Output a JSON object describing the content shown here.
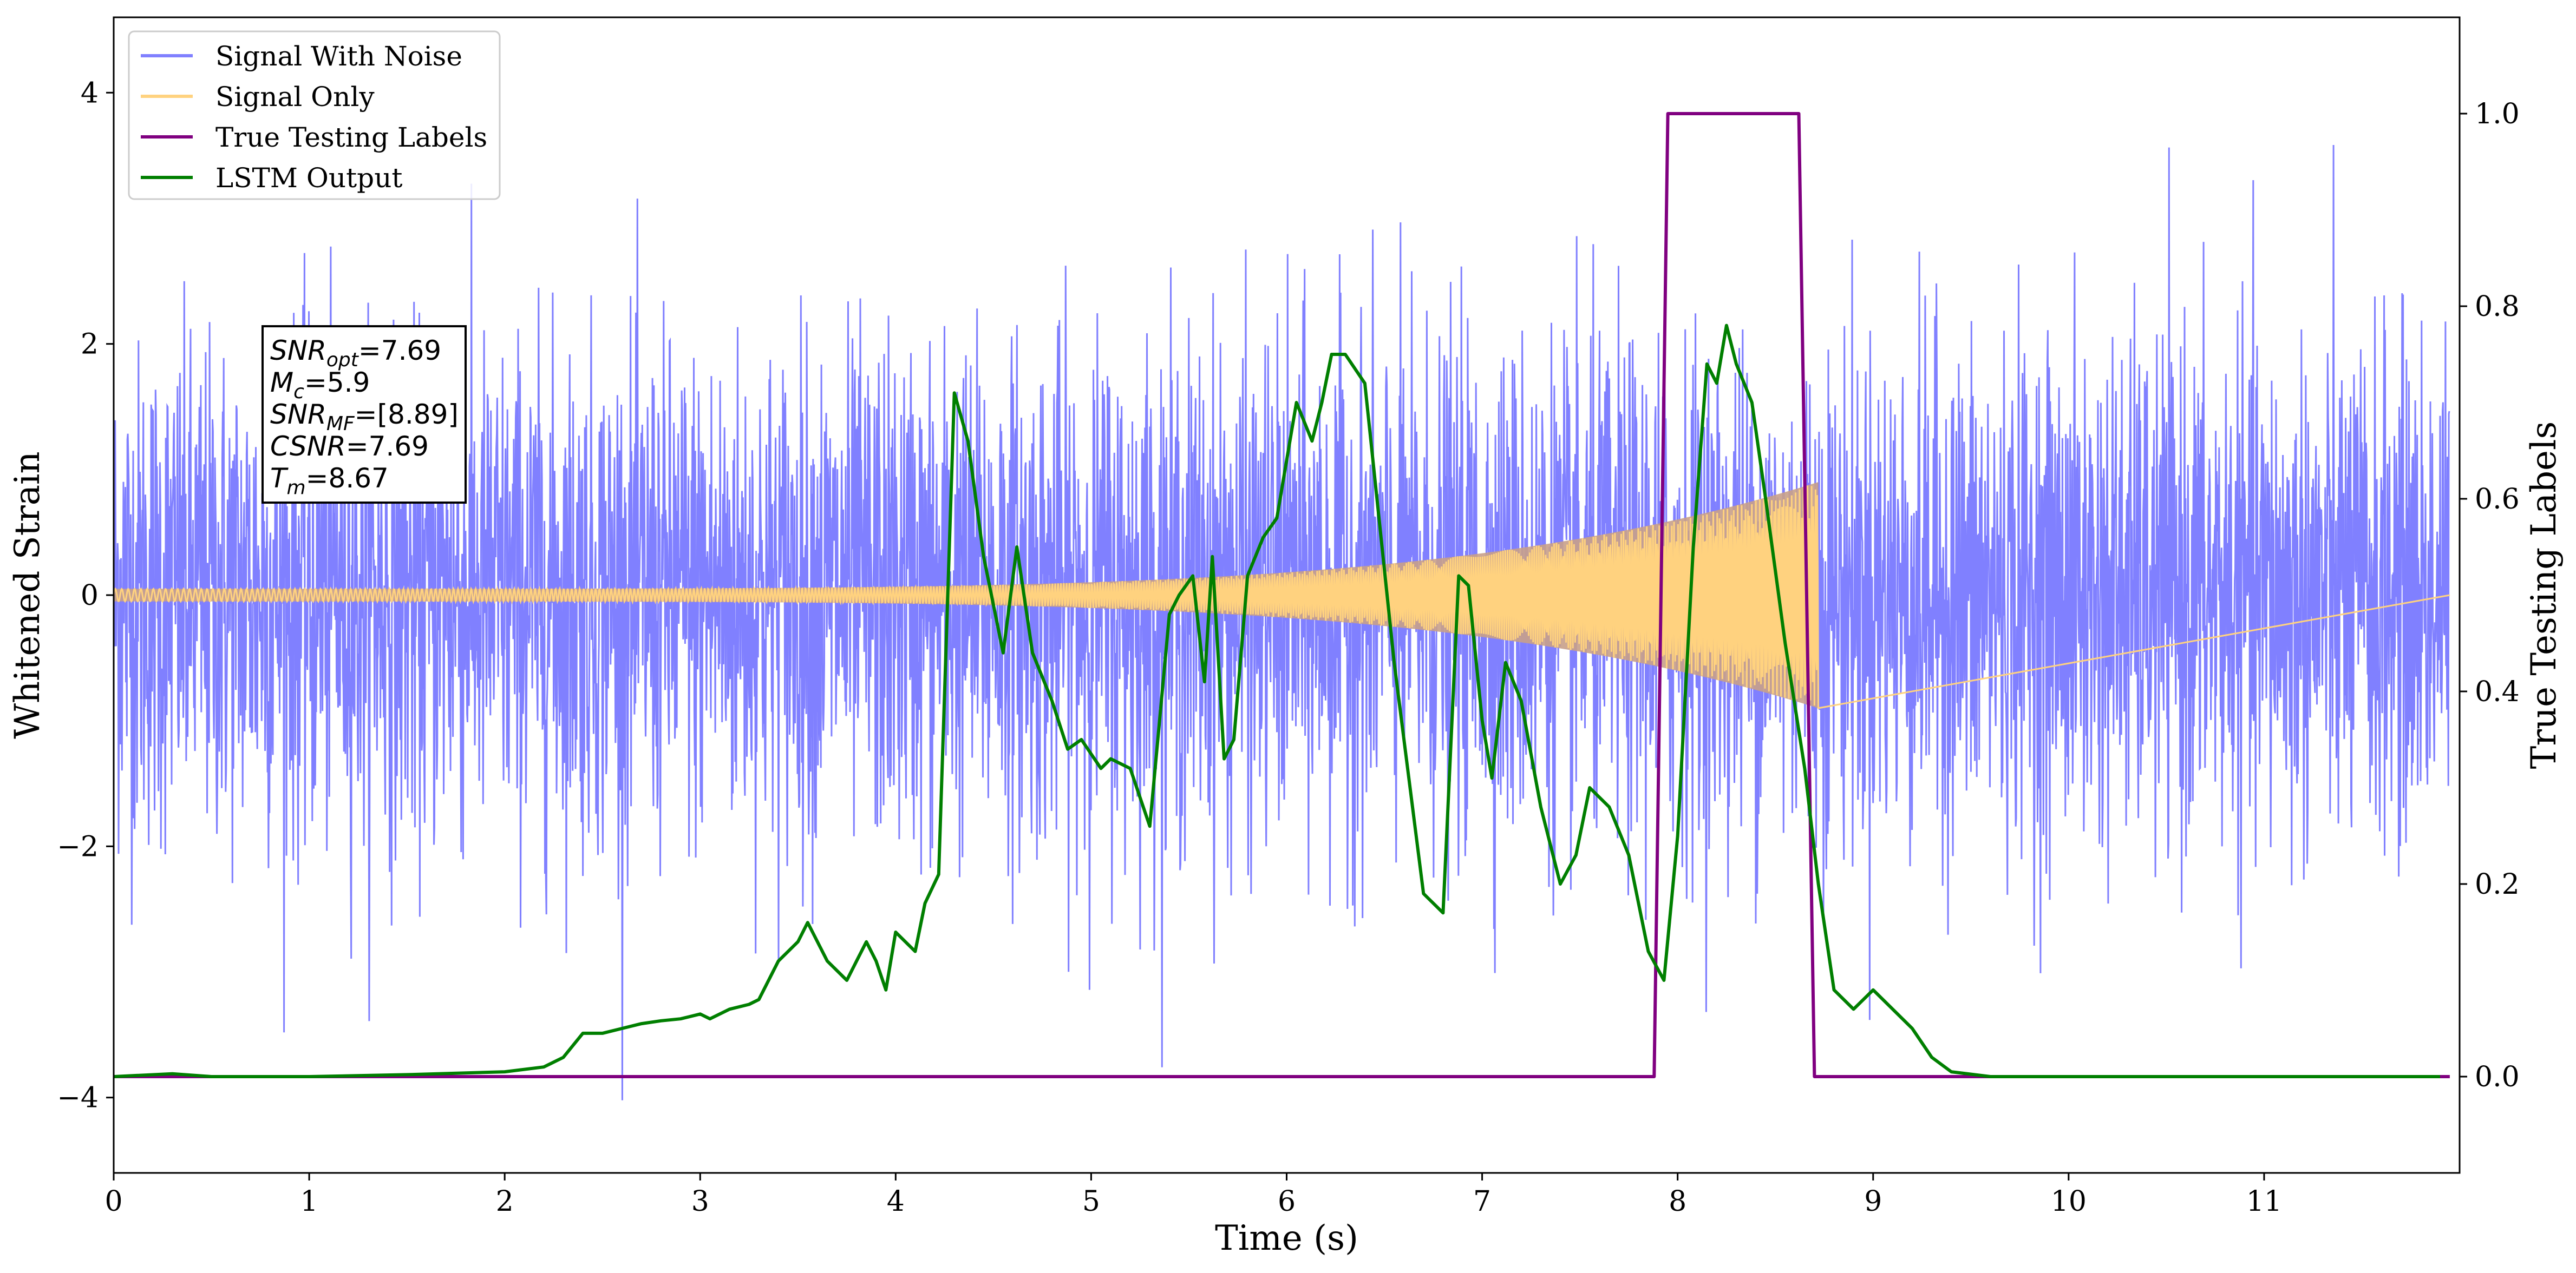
{
  "chart_data": {
    "type": "line",
    "xlabel": "Time (s)",
    "ylabel": "Whitened Strain",
    "y2label": "True Testing Labels",
    "xlim": [
      0,
      12
    ],
    "ylim": [
      -4.6,
      4.6
    ],
    "y2lim": [
      -0.1,
      1.1
    ],
    "xticks": [
      0,
      1,
      2,
      3,
      4,
      5,
      6,
      7,
      8,
      9,
      10,
      11
    ],
    "xticklabels": [
      "0",
      "1",
      "2",
      "3",
      "4",
      "5",
      "6",
      "7",
      "8",
      "9",
      "10",
      "11"
    ],
    "yticks": [
      -4,
      -2,
      0,
      2,
      4
    ],
    "yticklabels": [
      "−4",
      "−2",
      "0",
      "2",
      "4"
    ],
    "y2ticks": [
      0.0,
      0.2,
      0.4,
      0.6,
      0.8,
      1.0
    ],
    "y2ticklabels": [
      "0.0",
      "0.2",
      "0.4",
      "0.6",
      "0.8",
      "1.0"
    ],
    "grid": false,
    "legend_position": "top-left",
    "legend": [
      "Signal With Noise",
      "Signal Only",
      "True Testing Labels",
      "LSTM Output"
    ],
    "series": [
      {
        "name": "Signal With Noise",
        "axis": "left",
        "color": "#8080ff",
        "description_values": {
          "typical_range": [
            -2.0,
            2.0
          ],
          "peaks": [
            4.1,
            -4.2
          ]
        }
      },
      {
        "name": "Signal Only",
        "axis": "left",
        "color": "#ffd27f",
        "chirp": {
          "start": 0.0,
          "end": 8.72,
          "start_amplitude": 0.05,
          "end_amplitude": 0.9
        }
      },
      {
        "name": "True Testing Labels",
        "axis": "right",
        "color": "#800080",
        "x": [
          0.0,
          7.88,
          7.95,
          8.62,
          8.7,
          11.95
        ],
        "y": [
          0.0,
          0.0,
          1.0,
          1.0,
          0.0,
          0.0
        ]
      },
      {
        "name": "LSTM Output",
        "axis": "right",
        "color": "#007f00",
        "x": [
          0.0,
          0.3,
          0.5,
          1.0,
          1.5,
          2.0,
          2.2,
          2.3,
          2.4,
          2.5,
          2.6,
          2.7,
          2.8,
          2.9,
          3.0,
          3.05,
          3.15,
          3.25,
          3.3,
          3.4,
          3.5,
          3.55,
          3.65,
          3.75,
          3.8,
          3.85,
          3.9,
          3.95,
          4.0,
          4.1,
          4.15,
          4.22,
          4.3,
          4.37,
          4.45,
          4.55,
          4.62,
          4.7,
          4.8,
          4.88,
          4.95,
          5.05,
          5.1,
          5.2,
          5.3,
          5.4,
          5.45,
          5.52,
          5.58,
          5.62,
          5.68,
          5.73,
          5.8,
          5.88,
          5.95,
          6.05,
          6.13,
          6.18,
          6.23,
          6.3,
          6.4,
          6.55,
          6.7,
          6.8,
          6.88,
          6.93,
          7.0,
          7.05,
          7.12,
          7.2,
          7.3,
          7.4,
          7.48,
          7.55,
          7.65,
          7.75,
          7.85,
          7.93,
          8.0,
          8.08,
          8.15,
          8.2,
          8.25,
          8.3,
          8.38,
          8.45,
          8.55,
          8.65,
          8.72,
          8.8,
          8.9,
          9.0,
          9.1,
          9.2,
          9.3,
          9.4,
          9.6,
          10.0,
          11.0,
          11.9
        ],
        "y": [
          0.0,
          0.003,
          0.0,
          0.0,
          0.002,
          0.005,
          0.01,
          0.02,
          0.045,
          0.045,
          0.05,
          0.055,
          0.058,
          0.06,
          0.065,
          0.06,
          0.07,
          0.075,
          0.08,
          0.12,
          0.14,
          0.16,
          0.12,
          0.1,
          0.12,
          0.14,
          0.12,
          0.09,
          0.15,
          0.13,
          0.18,
          0.21,
          0.71,
          0.66,
          0.54,
          0.44,
          0.55,
          0.44,
          0.39,
          0.34,
          0.35,
          0.32,
          0.33,
          0.32,
          0.26,
          0.48,
          0.5,
          0.52,
          0.41,
          0.54,
          0.33,
          0.35,
          0.52,
          0.56,
          0.58,
          0.7,
          0.66,
          0.7,
          0.75,
          0.75,
          0.72,
          0.43,
          0.19,
          0.17,
          0.52,
          0.51,
          0.37,
          0.31,
          0.43,
          0.39,
          0.28,
          0.2,
          0.23,
          0.3,
          0.28,
          0.23,
          0.13,
          0.1,
          0.25,
          0.55,
          0.74,
          0.72,
          0.78,
          0.74,
          0.7,
          0.6,
          0.45,
          0.32,
          0.2,
          0.09,
          0.07,
          0.09,
          0.07,
          0.05,
          0.02,
          0.005,
          0.0,
          0.0,
          0.0,
          0.0
        ]
      }
    ],
    "annotation": {
      "lines": [
        {
          "label": "SNR",
          "sub": "opt",
          "value": "=7.69"
        },
        {
          "label": "M",
          "sub": "c",
          "value": "=5.9"
        },
        {
          "label": "SNR",
          "sub": "MF",
          "value": "=[8.89]"
        },
        {
          "label": "CSNR",
          "sub": "",
          "value": "=7.69"
        },
        {
          "label": "T",
          "sub": "m",
          "value": "=8.67"
        }
      ]
    }
  }
}
